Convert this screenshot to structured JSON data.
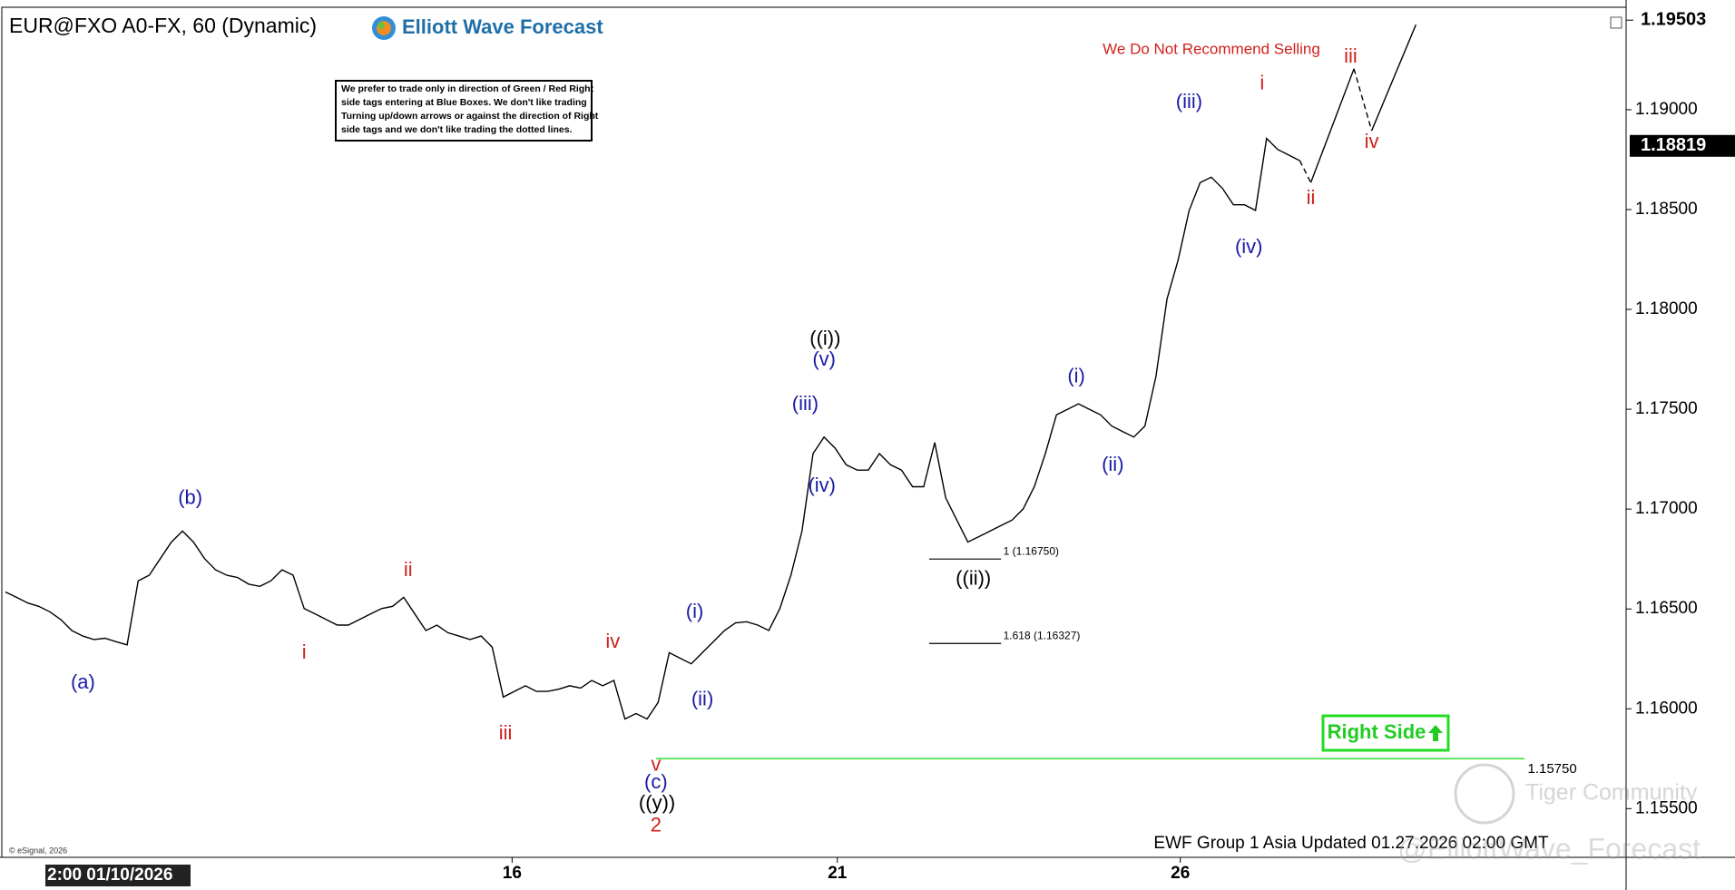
{
  "chart_data": {
    "type": "line",
    "title": "EUR@FXO A0-FX, 60 (Dynamic)",
    "brand": "Elliott Wave Forecast",
    "disclaimer": [
      "We prefer to trade only in direction of Green / Red Right",
      "side tags entering at Blue Boxes. We don't like trading",
      "Turning up/down arrows or against the direction of Right",
      "side tags and we don't like trading the dotted lines."
    ],
    "warning": "We Do Not Recommend Selling",
    "right_side": "Right Side",
    "footer": "EWF Group 1 Asia Updated 01.27.2026 02:00 GMT",
    "copyright": "© eSignal, 2026",
    "watermark": [
      "Tiger Community",
      "@ElliottWave_Forecast"
    ],
    "start_label": "2:00 01/10/2026",
    "color": "#000000",
    "x": [
      0,
      1,
      2,
      3,
      4,
      5,
      6,
      7,
      8,
      9,
      10,
      11,
      12,
      13,
      14,
      15,
      16,
      17,
      18,
      19,
      20,
      21,
      22,
      23,
      24,
      25,
      26,
      27,
      28,
      29,
      30,
      31,
      32,
      33,
      34,
      35,
      36,
      37,
      38,
      39,
      40,
      41,
      42,
      43,
      44,
      45,
      46,
      47,
      48,
      49,
      50,
      51,
      52,
      53,
      54,
      55,
      56,
      57,
      58,
      59,
      60,
      61,
      62,
      63,
      64,
      65,
      66,
      67,
      68,
      69,
      70,
      71,
      72,
      73,
      74,
      75,
      76,
      77,
      78,
      79,
      80,
      81,
      82,
      83,
      84,
      85,
      86,
      87,
      88,
      89,
      90,
      91,
      92,
      93,
      94,
      95,
      96,
      97,
      98,
      99,
      100,
      101,
      102,
      103,
      104,
      105,
      106,
      107,
      108,
      109,
      110,
      111,
      112,
      113,
      114,
      115,
      116,
      117
    ],
    "values": [
      1.16585,
      1.16558,
      1.1653,
      1.16513,
      1.16486,
      1.16447,
      1.16392,
      1.16364,
      1.16347,
      1.16353,
      1.16336,
      1.1632,
      1.16641,
      1.16669,
      1.16752,
      1.16835,
      1.1689,
      1.16835,
      1.16752,
      1.16696,
      1.16669,
      1.16657,
      1.16624,
      1.16613,
      1.16641,
      1.16696,
      1.16669,
      1.16502,
      1.16475,
      1.16447,
      1.16419,
      1.16419,
      1.16447,
      1.16475,
      1.16502,
      1.16513,
      1.16558,
      1.16475,
      1.16392,
      1.16419,
      1.16381,
      1.16364,
      1.16347,
      1.16364,
      1.16309,
      1.16059,
      1.16087,
      1.16115,
      1.16087,
      1.16087,
      1.16098,
      1.16115,
      1.16104,
      1.16142,
      1.16115,
      1.16142,
      1.15949,
      1.15976,
      1.15949,
      1.16032,
      1.16281,
      1.16253,
      1.16225,
      1.16281,
      1.16336,
      1.16392,
      1.1643,
      1.16436,
      1.16419,
      1.16392,
      1.16502,
      1.16669,
      1.1689,
      1.17278,
      1.17361,
      1.17305,
      1.17222,
      1.17195,
      1.17195,
      1.17278,
      1.17222,
      1.17195,
      1.17112,
      1.17112,
      1.17333,
      1.17056,
      1.16945,
      1.16835,
      1.16862,
      1.1689,
      1.16918,
      1.16945,
      1.17001,
      1.17112,
      1.17278,
      1.17472,
      1.17499,
      1.17527,
      1.17499,
      1.17472,
      1.17416,
      1.17388,
      1.17361,
      1.17416,
      1.17665,
      1.18053,
      1.18247,
      1.18496,
      1.18635,
      1.18662,
      1.18607,
      1.18524,
      1.18524,
      1.18496,
      1.18856,
      1.18801,
      1.18773,
      1.18745
    ],
    "projection": {
      "x": [
        117,
        118,
        121.9,
        123.5,
        127.5
      ],
      "values": [
        1.18745,
        1.18635,
        1.19205,
        1.18895,
        1.19426
      ]
    },
    "xlim": [
      0,
      146.5
    ],
    "xticks": [
      {
        "value": 45.8,
        "label": "16"
      },
      {
        "value": 75.2,
        "label": "21"
      },
      {
        "value": 106.2,
        "label": "26"
      }
    ],
    "ylim": [
      1.15256,
      1.19504
    ],
    "yticks": [
      {
        "value": 1.155,
        "label": "1.15500"
      },
      {
        "value": 1.16,
        "label": "1.16000"
      },
      {
        "value": 1.165,
        "label": "1.16500"
      },
      {
        "value": 1.17,
        "label": "1.17000"
      },
      {
        "value": 1.175,
        "label": "1.17500"
      },
      {
        "value": 1.18,
        "label": "1.18000"
      },
      {
        "value": 1.185,
        "label": "1.18500"
      },
      {
        "value": 1.19,
        "label": "1.19000"
      }
    ],
    "high_marker": {
      "value": 1.19503,
      "label": "1.19503"
    },
    "last_price": {
      "value": 1.18819,
      "label": "1.18819"
    },
    "fib_levels": [
      {
        "value": 1.1675,
        "label": "1 (1.16750)"
      },
      {
        "value": 1.16327,
        "label": "1.618 (1.16327)"
      }
    ],
    "invalidation": {
      "value": 1.1575,
      "label": "1.15750",
      "color": "#33dd33"
    },
    "grid": false,
    "wave_labels": [
      {
        "text": "(a)",
        "color": "#1a1aa6"
      },
      {
        "text": "(b)",
        "color": "#1a1aa6"
      },
      {
        "text": "i",
        "color": "#d0201b"
      },
      {
        "text": "ii",
        "color": "#d0201b"
      },
      {
        "text": "iii",
        "color": "#d0201b"
      },
      {
        "text": "iv",
        "color": "#d0201b"
      },
      {
        "text": "v",
        "color": "#d0201b"
      },
      {
        "text": "(c)",
        "color": "#1a1aa6"
      },
      {
        "text": "((y))",
        "color": "#000000"
      },
      {
        "text": "2",
        "color": "#d0201b"
      },
      {
        "text": "(i)",
        "color": "#1a1aa6"
      },
      {
        "text": "(ii)",
        "color": "#1a1aa6"
      },
      {
        "text": "(iii)",
        "color": "#1a1aa6"
      },
      {
        "text": "(iv)",
        "color": "#1a1aa6"
      },
      {
        "text": "(v)",
        "color": "#1a1aa6"
      },
      {
        "text": "((i))",
        "color": "#000000"
      },
      {
        "text": "((ii))",
        "color": "#000000"
      },
      {
        "text": "(i)",
        "color": "#1a1aa6"
      },
      {
        "text": "(ii)",
        "color": "#1a1aa6"
      },
      {
        "text": "(iii)",
        "color": "#1a1aa6"
      },
      {
        "text": "(iv)",
        "color": "#1a1aa6"
      },
      {
        "text": "i",
        "color": "#d0201b"
      },
      {
        "text": "ii",
        "color": "#d0201b"
      },
      {
        "text": "iii",
        "color": "#d0201b"
      },
      {
        "text": "iv",
        "color": "#d0201b"
      }
    ]
  }
}
